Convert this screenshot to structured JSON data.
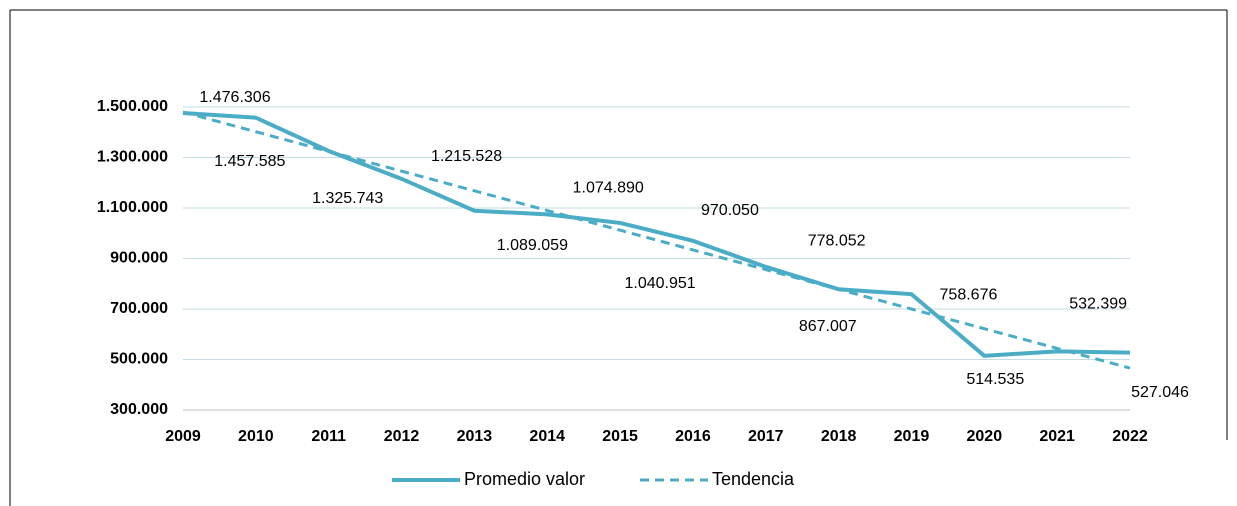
{
  "chart_data": {
    "type": "line",
    "categories": [
      "2009",
      "2010",
      "2011",
      "2012",
      "2013",
      "2014",
      "2015",
      "2016",
      "2017",
      "2018",
      "2019",
      "2020",
      "2021",
      "2022"
    ],
    "series": [
      {
        "name": "Promedio valor",
        "color": "#4bacc6",
        "values": [
          1476306,
          1457585,
          1325743,
          1215528,
          1089059,
          1074890,
          1040951,
          970050,
          867007,
          778052,
          758676,
          514535,
          532399,
          527046
        ],
        "value_labels": [
          "1.476.306",
          "1.457.585",
          "1.325.743",
          "1.215.528",
          "1.089.059",
          "1.074.890",
          "1.040.951",
          "970.050",
          "867.007",
          "778.052",
          "758.676",
          "514.535",
          "532.399",
          "527.046"
        ]
      },
      {
        "name": "Tendencia",
        "color": "#4bacc6",
        "dash": true,
        "values": [
          1480000,
          1402000,
          1324000,
          1246000,
          1168000,
          1090000,
          1012000,
          934000,
          856000,
          778000,
          700000,
          622000,
          544000,
          466000
        ]
      }
    ],
    "ylim": [
      300000,
      1500000
    ],
    "yticks": [
      {
        "value": 300000,
        "label": "300.000"
      },
      {
        "value": 500000,
        "label": "500.000"
      },
      {
        "value": 700000,
        "label": "700.000"
      },
      {
        "value": 900000,
        "label": "900.000"
      },
      {
        "value": 1100000,
        "label": "1.100.000"
      },
      {
        "value": 1300000,
        "label": "1.300.000"
      },
      {
        "value": 1500000,
        "label": "1.500.000"
      }
    ],
    "grid": true,
    "legend": "bottom"
  }
}
